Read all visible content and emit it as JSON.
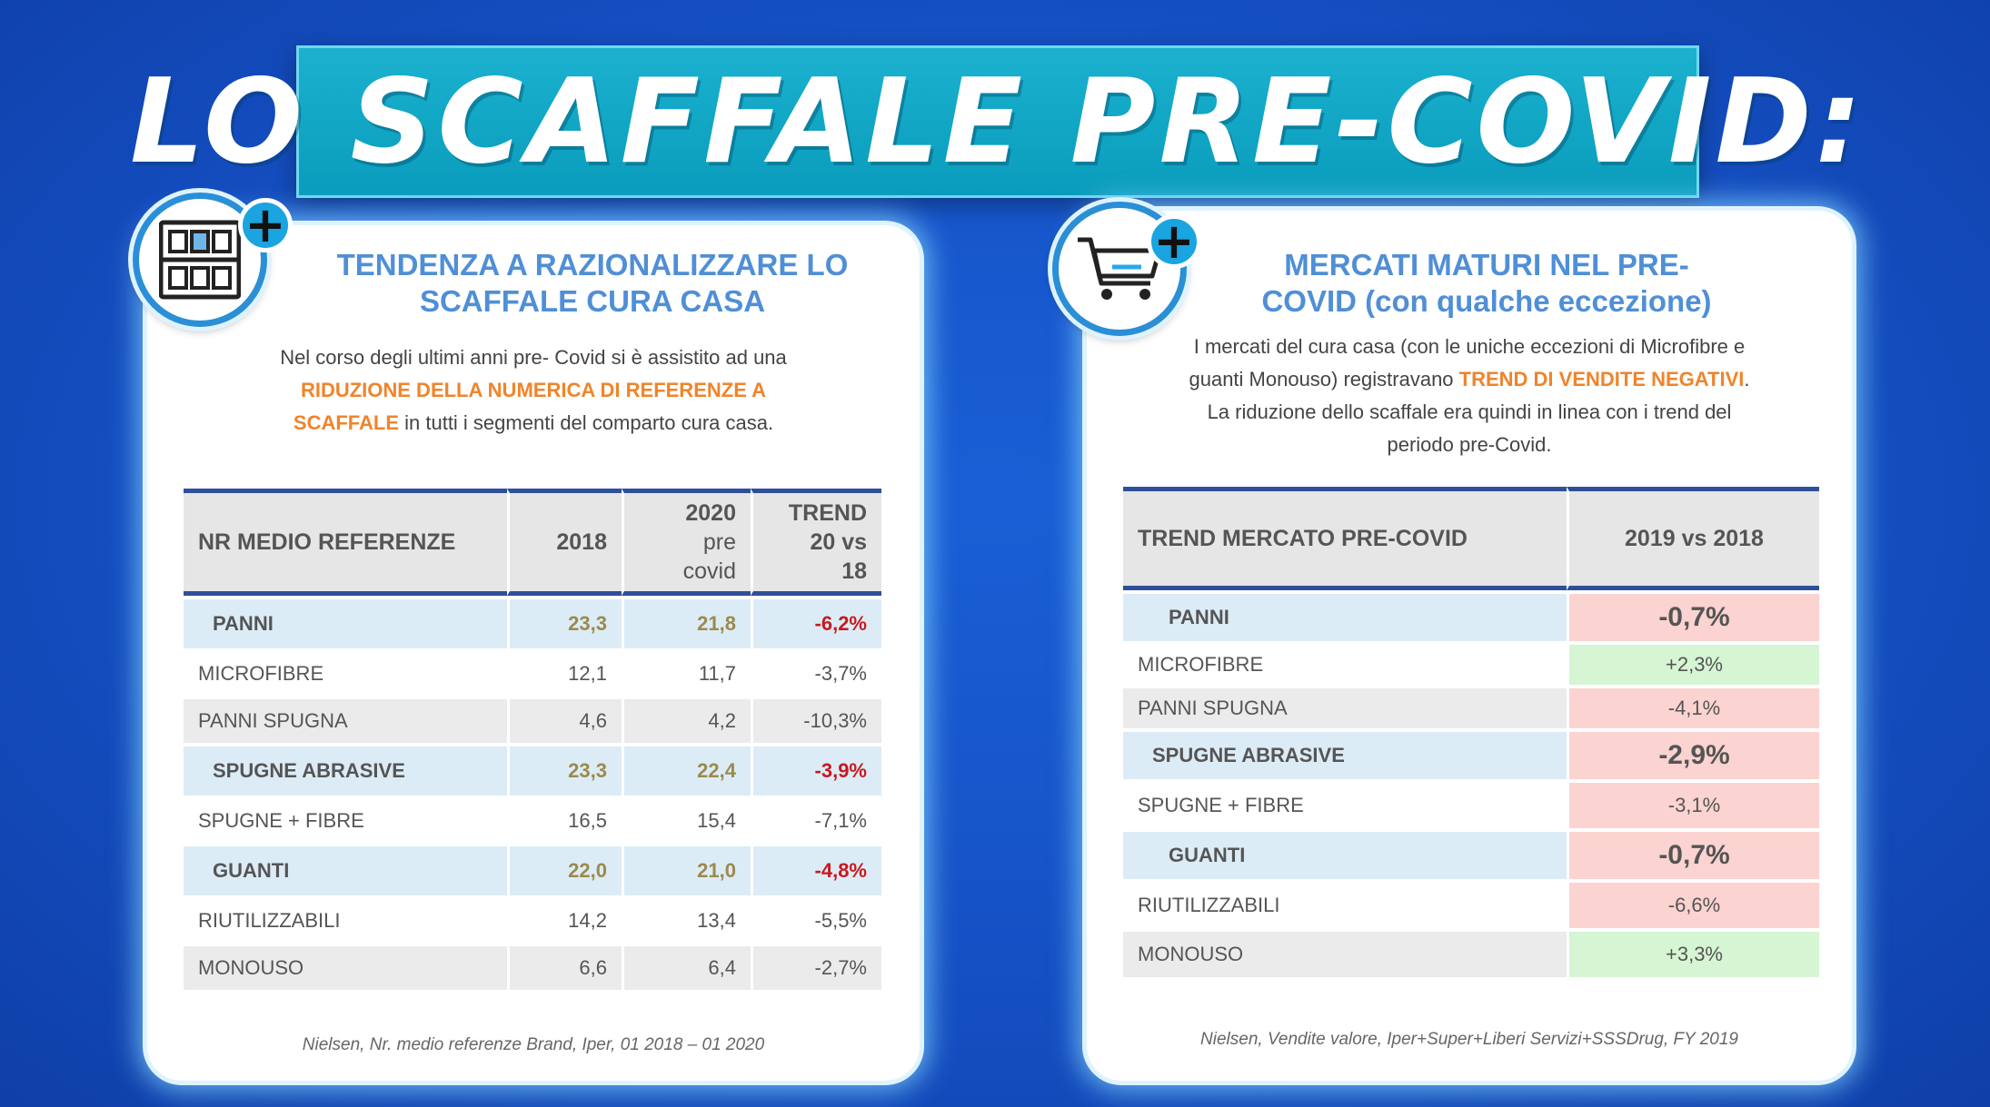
{
  "title": "LO SCAFFALE PRE-COVID:",
  "left": {
    "title_line1": "TENDENZA A RAZIONALIZZARE LO",
    "title_line2": "SCAFFALE CURA CASA",
    "desc_part1": "Nel corso degli ultimi anni pre- Covid si è assistito ad una",
    "desc_highlight1": "RIDUZIONE DELLA NUMERICA DI REFERENZE A",
    "desc_highlight2": "SCAFFALE",
    "desc_part2": " in tutti i segmenti del comparto cura casa.",
    "table": {
      "headers": [
        "NR MEDIO REFERENZE",
        "2018",
        "2020 pre covid",
        "TREND 20 vs 18"
      ],
      "header_col3_lines": [
        "2020",
        "pre",
        "covid"
      ],
      "header_col4_lines": [
        "TREND",
        "20  vs",
        "18"
      ],
      "rows": [
        {
          "label": "PANNI",
          "v2018": "23,3",
          "v2020": "21,8",
          "trend": "-6,2%"
        },
        {
          "label": "MICROFIBRE",
          "v2018": "12,1",
          "v2020": "11,7",
          "trend": "-3,7%"
        },
        {
          "label": "PANNI SPUGNA",
          "v2018": "4,6",
          "v2020": "4,2",
          "trend": "-10,3%"
        },
        {
          "label": "SPUGNE ABRASIVE",
          "v2018": "23,3",
          "v2020": "22,4",
          "trend": "-3,9%"
        },
        {
          "label": "SPUGNE + FIBRE",
          "v2018": "16,5",
          "v2020": "15,4",
          "trend": "-7,1%"
        },
        {
          "label": "GUANTI",
          "v2018": "22,0",
          "v2020": "21,0",
          "trend": "-4,8%"
        },
        {
          "label": "RIUTILIZZABILI",
          "v2018": "14,2",
          "v2020": "13,4",
          "trend": "-5,5%"
        },
        {
          "label": "MONOUSO",
          "v2018": "6,6",
          "v2020": "6,4",
          "trend": "-2,7%"
        }
      ]
    },
    "source": "Nielsen, Nr. medio referenze Brand, Iper, 01 2018 – 01 2020"
  },
  "right": {
    "title_line1": "MERCATI MATURI NEL PRE-",
    "title_line2": "COVID (con qualche eccezione)",
    "desc_line1": "I mercati del cura casa (con le uniche eccezioni di Microfibre e",
    "desc_line2a": "guanti Monouso) registravano ",
    "desc_highlight": "TREND DI VENDITE NEGATIVI",
    "desc_line2b": ".",
    "desc_line3": "La riduzione dello scaffale era quindi in linea con i trend del",
    "desc_line4": "periodo pre-Covid.",
    "table": {
      "headers": [
        "TREND MERCATO PRE-COVID",
        "2019 vs 2018"
      ],
      "rows": [
        {
          "label": "PANNI",
          "value": "-0,7%",
          "status": "negative"
        },
        {
          "label": "MICROFIBRE",
          "value": "+2,3%",
          "status": "positive"
        },
        {
          "label": "PANNI SPUGNA",
          "value": "-4,1%",
          "status": "negative"
        },
        {
          "label": "SPUGNE ABRASIVE",
          "value": "-2,9%",
          "status": "negative"
        },
        {
          "label": "SPUGNE + FIBRE",
          "value": "-3,1%",
          "status": "negative"
        },
        {
          "label": "GUANTI",
          "value": "-0,7%",
          "status": "negative"
        },
        {
          "label": "RIUTILIZZABILI",
          "value": "-6,6%",
          "status": "negative"
        },
        {
          "label": "MONOUSO",
          "value": "+3,3%",
          "status": "positive"
        }
      ]
    },
    "source": "Nielsen, Vendite valore, Iper+Super+Liberi Servizi+SSSDrug, FY 2019"
  },
  "icons": {
    "left": "shelf-icon",
    "right": "shopping-cart-icon",
    "plus": "plus-icon"
  },
  "colors": {
    "background": "#1550c4",
    "banner": "#0a9cbc",
    "title_blue": "#4f8fd6",
    "highlight_orange": "#f0842a",
    "negative_red": "#d83a3a",
    "positive_green": "#2f8a2f"
  }
}
